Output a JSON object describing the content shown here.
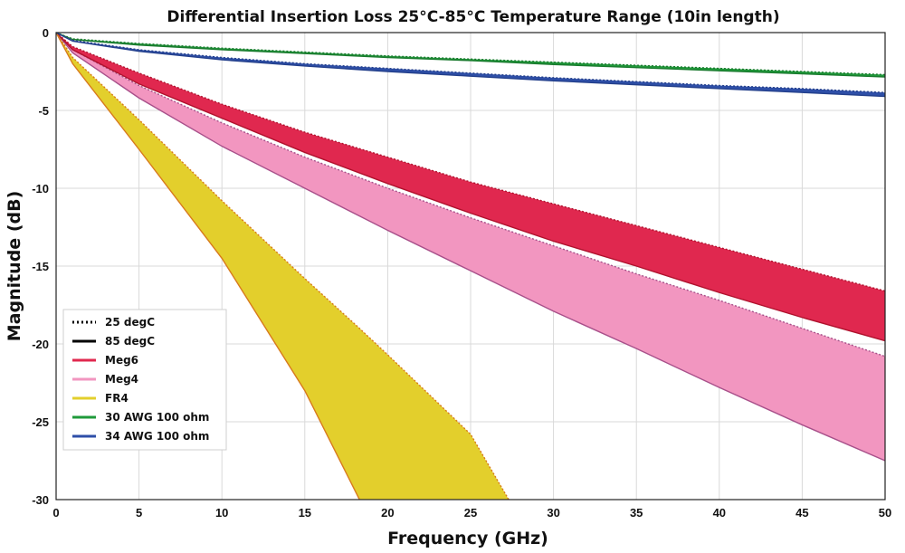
{
  "chart_data": {
    "type": "area",
    "title": "Differential Insertion Loss 25°C-85°C Temperature Range (10in length)",
    "xlabel": "Frequency (GHz)",
    "ylabel": "Magnitude (dB)",
    "xlim": [
      0,
      50
    ],
    "ylim": [
      -30,
      0
    ],
    "xticks": [
      0,
      5,
      10,
      15,
      20,
      25,
      30,
      35,
      40,
      45,
      50
    ],
    "yticks": [
      0,
      -5,
      -10,
      -15,
      -20,
      -25,
      -30
    ],
    "grid": true,
    "legend_position": "bottom-left",
    "legend": [
      {
        "label": "25 degC",
        "style": "dotted",
        "color": "#000000"
      },
      {
        "label": "85 degC",
        "style": "solid",
        "color": "#000000"
      },
      {
        "label": "Meg6",
        "style": "solid",
        "color": "#e0284f"
      },
      {
        "label": "Meg4",
        "style": "solid",
        "color": "#f296c0"
      },
      {
        "label": "FR4",
        "style": "solid",
        "color": "#e3cf2c"
      },
      {
        "label": "30 AWG 100 ohm",
        "style": "solid",
        "color": "#1f9a3a"
      },
      {
        "label": "34 AWG 100 ohm",
        "style": "solid",
        "color": "#2e4fa8"
      }
    ],
    "series": [
      {
        "name": "Meg4",
        "fill": "#f296c0",
        "edge": "#a8508a",
        "x": [
          0,
          1,
          5,
          10,
          15,
          20,
          25,
          30,
          35,
          40,
          45,
          50
        ],
        "y_25degC": [
          0,
          -1.1,
          -3.4,
          -5.8,
          -8.0,
          -10.0,
          -11.9,
          -13.7,
          -15.5,
          -17.2,
          -19.0,
          -20.8
        ],
        "y_85degC": [
          0,
          -1.3,
          -4.2,
          -7.3,
          -10.0,
          -12.7,
          -15.3,
          -17.9,
          -20.3,
          -22.8,
          -25.2,
          -27.5
        ]
      },
      {
        "name": "Meg6",
        "fill": "#e0284f",
        "edge": "#b0122e",
        "x": [
          0,
          1,
          5,
          10,
          15,
          20,
          25,
          30,
          35,
          40,
          45,
          50
        ],
        "y_25degC": [
          0,
          -0.9,
          -2.6,
          -4.6,
          -6.4,
          -8.0,
          -9.6,
          -11.0,
          -12.4,
          -13.8,
          -15.2,
          -16.6
        ],
        "y_85degC": [
          0,
          -1.1,
          -3.3,
          -5.5,
          -7.7,
          -9.7,
          -11.6,
          -13.4,
          -15.0,
          -16.7,
          -18.3,
          -19.8
        ]
      },
      {
        "name": "FR4",
        "fill": "#e3cf2c",
        "edge": "#d87a1c",
        "x": [
          0,
          1,
          5,
          10,
          15,
          18.3,
          20,
          25,
          27.3
        ],
        "y_25degC": [
          0,
          -1.6,
          -5.6,
          -10.8,
          -15.8,
          -19.0,
          -20.7,
          -25.8,
          -30.0
        ],
        "y_85degC": [
          0,
          -2.0,
          -7.5,
          -14.5,
          -23.0,
          -30.0
        ]
      },
      {
        "name": "30 AWG 100 ohm",
        "fill": "#1f9a3a",
        "edge": "#1a7a2e",
        "x": [
          0,
          1,
          5,
          10,
          15,
          20,
          25,
          30,
          35,
          40,
          45,
          50
        ],
        "y_25degC": [
          0,
          -0.4,
          -0.7,
          -1.0,
          -1.25,
          -1.5,
          -1.7,
          -1.9,
          -2.1,
          -2.3,
          -2.5,
          -2.7
        ],
        "y_85degC": [
          0,
          -0.45,
          -0.8,
          -1.1,
          -1.35,
          -1.6,
          -1.8,
          -2.05,
          -2.25,
          -2.45,
          -2.65,
          -2.85
        ]
      },
      {
        "name": "34 AWG 100 ohm",
        "fill": "#2e4fa8",
        "edge": "#24408c",
        "x": [
          0,
          1,
          5,
          10,
          15,
          20,
          25,
          30,
          35,
          40,
          45,
          50
        ],
        "y_25degC": [
          0,
          -0.5,
          -1.1,
          -1.6,
          -2.0,
          -2.3,
          -2.6,
          -2.9,
          -3.15,
          -3.4,
          -3.6,
          -3.85
        ],
        "y_85degC": [
          0,
          -0.55,
          -1.2,
          -1.75,
          -2.15,
          -2.5,
          -2.8,
          -3.1,
          -3.35,
          -3.6,
          -3.85,
          -4.1
        ]
      }
    ]
  }
}
